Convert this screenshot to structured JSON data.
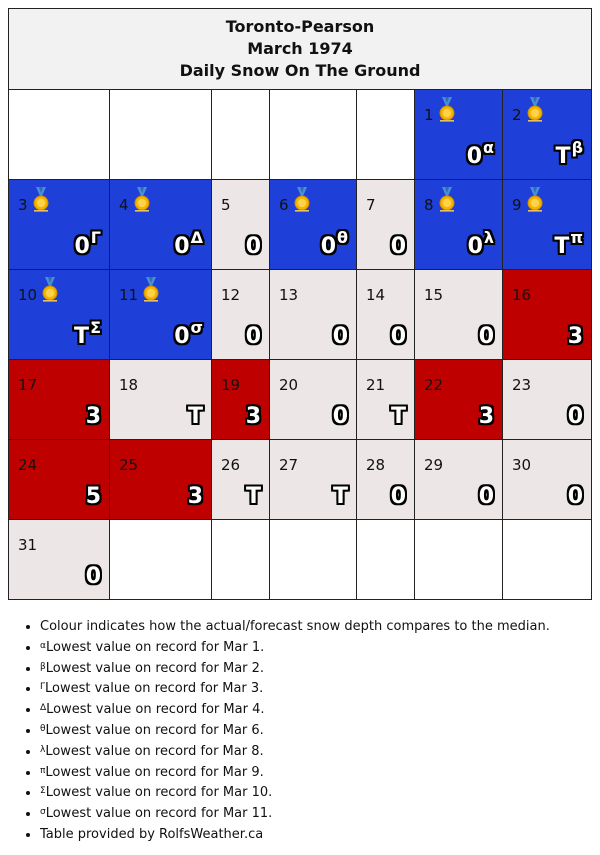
{
  "header": {
    "station": "Toronto-Pearson",
    "month": "March 1974",
    "subtitle": "Daily Snow On The Ground"
  },
  "colors": {
    "lowest_on_record": "#1e40d8",
    "below_median": "#bf0000",
    "near_median": "#ece6e6",
    "header_bg": "#f2f2f2"
  },
  "icons": {
    "record": "medal-icon"
  },
  "days": [
    {
      "day": "1",
      "value": "0",
      "mark": "α",
      "category": "lowest",
      "medal": true
    },
    {
      "day": "2",
      "value": "T",
      "mark": "β",
      "category": "lowest",
      "medal": true
    },
    {
      "day": "3",
      "value": "0",
      "mark": "Γ",
      "category": "lowest",
      "medal": true
    },
    {
      "day": "4",
      "value": "0",
      "mark": "Δ",
      "category": "lowest",
      "medal": true
    },
    {
      "day": "5",
      "value": "0",
      "mark": "",
      "category": "median",
      "medal": false
    },
    {
      "day": "6",
      "value": "0",
      "mark": "θ",
      "category": "lowest",
      "medal": true
    },
    {
      "day": "7",
      "value": "0",
      "mark": "",
      "category": "median",
      "medal": false
    },
    {
      "day": "8",
      "value": "0",
      "mark": "λ",
      "category": "lowest",
      "medal": true
    },
    {
      "day": "9",
      "value": "T",
      "mark": "π",
      "category": "lowest",
      "medal": true
    },
    {
      "day": "10",
      "value": "T",
      "mark": "Σ",
      "category": "lowest",
      "medal": true
    },
    {
      "day": "11",
      "value": "0",
      "mark": "σ",
      "category": "lowest",
      "medal": true
    },
    {
      "day": "12",
      "value": "0",
      "mark": "",
      "category": "median",
      "medal": false
    },
    {
      "day": "13",
      "value": "0",
      "mark": "",
      "category": "median",
      "medal": false
    },
    {
      "day": "14",
      "value": "0",
      "mark": "",
      "category": "median",
      "medal": false
    },
    {
      "day": "15",
      "value": "0",
      "mark": "",
      "category": "median",
      "medal": false
    },
    {
      "day": "16",
      "value": "3",
      "mark": "",
      "category": "below",
      "medal": false
    },
    {
      "day": "17",
      "value": "3",
      "mark": "",
      "category": "below",
      "medal": false
    },
    {
      "day": "18",
      "value": "T",
      "mark": "",
      "category": "median",
      "medal": false
    },
    {
      "day": "19",
      "value": "3",
      "mark": "",
      "category": "below",
      "medal": false
    },
    {
      "day": "20",
      "value": "0",
      "mark": "",
      "category": "median",
      "medal": false
    },
    {
      "day": "21",
      "value": "T",
      "mark": "",
      "category": "median",
      "medal": false
    },
    {
      "day": "22",
      "value": "3",
      "mark": "",
      "category": "below",
      "medal": false
    },
    {
      "day": "23",
      "value": "0",
      "mark": "",
      "category": "median",
      "medal": false
    },
    {
      "day": "24",
      "value": "5",
      "mark": "",
      "category": "below",
      "medal": false
    },
    {
      "day": "25",
      "value": "3",
      "mark": "",
      "category": "below",
      "medal": false
    },
    {
      "day": "26",
      "value": "T",
      "mark": "",
      "category": "median",
      "medal": false
    },
    {
      "day": "27",
      "value": "T",
      "mark": "",
      "category": "median",
      "medal": false
    },
    {
      "day": "28",
      "value": "0",
      "mark": "",
      "category": "median",
      "medal": false
    },
    {
      "day": "29",
      "value": "0",
      "mark": "",
      "category": "median",
      "medal": false
    },
    {
      "day": "30",
      "value": "0",
      "mark": "",
      "category": "median",
      "medal": false
    },
    {
      "day": "31",
      "value": "0",
      "mark": "",
      "category": "median",
      "medal": false
    }
  ],
  "notes": [
    {
      "mark": "",
      "text": "Colour indicates how the actual/forecast snow depth compares to the median."
    },
    {
      "mark": "α",
      "text": "Lowest value on record for Mar 1."
    },
    {
      "mark": "β",
      "text": "Lowest value on record for Mar 2."
    },
    {
      "mark": "Γ",
      "text": "Lowest value on record for Mar 3."
    },
    {
      "mark": "Δ",
      "text": "Lowest value on record for Mar 4."
    },
    {
      "mark": "θ",
      "text": "Lowest value on record for Mar 6."
    },
    {
      "mark": "λ",
      "text": "Lowest value on record for Mar 8."
    },
    {
      "mark": "π",
      "text": "Lowest value on record for Mar 9."
    },
    {
      "mark": "Σ",
      "text": "Lowest value on record for Mar 10."
    },
    {
      "mark": "σ",
      "text": "Lowest value on record for Mar 11."
    },
    {
      "mark": "",
      "text": "Table provided by RolfsWeather.ca"
    }
  ]
}
